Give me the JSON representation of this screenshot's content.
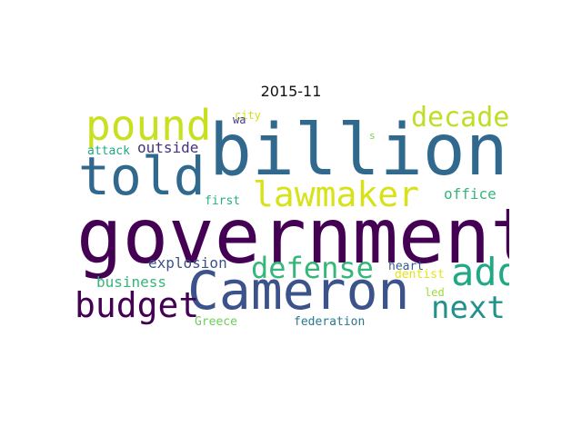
{
  "title": "2015-11",
  "words": [
    {
      "text": "government",
      "color": "#440154"
    },
    {
      "text": "billion",
      "color": "#31688e"
    },
    {
      "text": "Cameron",
      "color": "#3b528b"
    },
    {
      "text": "told",
      "color": "#31688e"
    },
    {
      "text": "pound",
      "color": "#c8e020"
    },
    {
      "text": "lawmaker",
      "color": "#d8e219"
    },
    {
      "text": "decade",
      "color": "#bddf26"
    },
    {
      "text": "add",
      "color": "#22a884"
    },
    {
      "text": "defense",
      "color": "#35b779"
    },
    {
      "text": "next",
      "color": "#21918c"
    },
    {
      "text": "budget",
      "color": "#440154"
    },
    {
      "text": "explosion",
      "color": "#3b528b"
    },
    {
      "text": "outside",
      "color": "#46327e"
    },
    {
      "text": "office",
      "color": "#35b779"
    },
    {
      "text": "business",
      "color": "#35b779"
    },
    {
      "text": "attack",
      "color": "#22a884"
    },
    {
      "text": "first",
      "color": "#29af7f"
    },
    {
      "text": "heart",
      "color": "#365c8d"
    },
    {
      "text": "dentist",
      "color": "#e5e419"
    },
    {
      "text": "Greece",
      "color": "#6ece58"
    },
    {
      "text": "federation",
      "color": "#2a788e"
    },
    {
      "text": "led",
      "color": "#a0da39"
    },
    {
      "text": "city",
      "color": "#d0e11c"
    },
    {
      "text": "wa",
      "color": "#443983"
    },
    {
      "text": "s",
      "color": "#7ad151"
    }
  ]
}
